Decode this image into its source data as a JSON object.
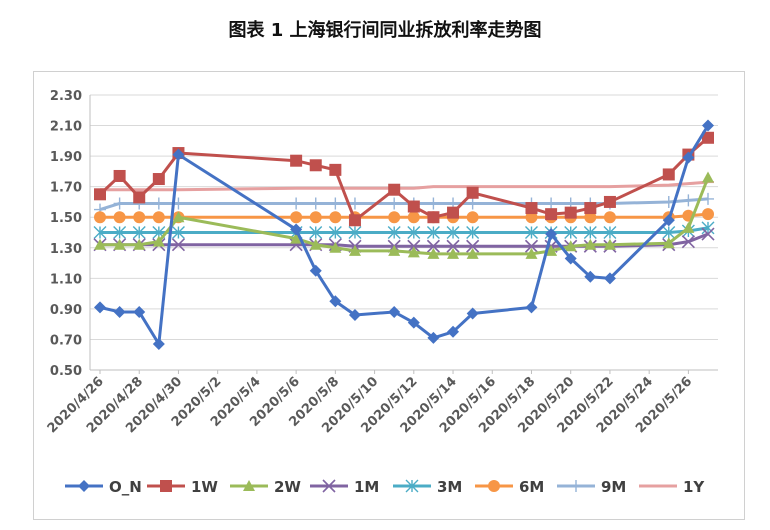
{
  "chart_data": {
    "type": "line",
    "title": "图表 1 上海银行间同业拆放利率走势图",
    "ylim": [
      0.5,
      2.3
    ],
    "y_ticks": [
      "2.30",
      "2.10",
      "1.90",
      "1.70",
      "1.50",
      "1.30",
      "1.10",
      "0.90",
      "0.70",
      "0.50"
    ],
    "x_tick_labels": [
      "2020/4/26",
      "2020/4/28",
      "2020/4/30",
      "2020/5/2",
      "2020/5/4",
      "2020/5/6",
      "2020/5/8",
      "2020/5/10",
      "2020/5/12",
      "2020/5/14",
      "2020/5/16",
      "2020/5/18",
      "2020/5/20",
      "2020/5/22",
      "2020/5/24",
      "2020/5/26"
    ],
    "x_range": [
      "2020/4/26",
      "2020/5/27"
    ],
    "legend_position": "bottom",
    "grid": true,
    "dates": [
      "2020/4/26",
      "2020/4/27",
      "2020/4/28",
      "2020/4/29",
      "2020/4/30",
      "2020/5/6",
      "2020/5/7",
      "2020/5/8",
      "2020/5/9",
      "2020/5/11",
      "2020/5/12",
      "2020/5/13",
      "2020/5/14",
      "2020/5/15",
      "2020/5/18",
      "2020/5/19",
      "2020/5/20",
      "2020/5/21",
      "2020/5/22",
      "2020/5/25",
      "2020/5/26",
      "2020/5/27"
    ],
    "series": [
      {
        "name": "O_N",
        "color": "#4472C4",
        "marker": "diamond",
        "values": [
          0.91,
          0.88,
          0.88,
          0.67,
          1.91,
          1.42,
          1.15,
          0.95,
          0.86,
          0.88,
          0.81,
          0.71,
          0.75,
          0.87,
          0.91,
          1.39,
          1.23,
          1.11,
          1.1,
          1.48,
          1.89,
          2.1
        ]
      },
      {
        "name": "1W",
        "color": "#C0504D",
        "marker": "square",
        "values": [
          1.65,
          1.77,
          1.63,
          1.75,
          1.92,
          1.87,
          1.84,
          1.81,
          1.48,
          1.68,
          1.57,
          1.5,
          1.53,
          1.66,
          1.56,
          1.52,
          1.53,
          1.56,
          1.6,
          1.78,
          1.91,
          2.02
        ]
      },
      {
        "name": "2W",
        "color": "#9BBB59",
        "marker": "triangle",
        "values": [
          1.32,
          1.32,
          1.32,
          1.34,
          1.5,
          1.36,
          1.32,
          1.3,
          1.28,
          1.28,
          1.27,
          1.26,
          1.26,
          1.26,
          1.26,
          1.28,
          1.31,
          1.32,
          1.32,
          1.33,
          1.43,
          1.76
        ]
      },
      {
        "name": "1M",
        "color": "#8064A2",
        "marker": "x",
        "values": [
          1.32,
          1.32,
          1.32,
          1.32,
          1.32,
          1.32,
          1.32,
          1.32,
          1.31,
          1.31,
          1.31,
          1.31,
          1.31,
          1.31,
          1.31,
          1.31,
          1.31,
          1.31,
          1.31,
          1.32,
          1.34,
          1.39
        ]
      },
      {
        "name": "3M",
        "color": "#4BACC6",
        "marker": "star",
        "values": [
          1.4,
          1.4,
          1.4,
          1.4,
          1.4,
          1.4,
          1.4,
          1.4,
          1.4,
          1.4,
          1.4,
          1.4,
          1.4,
          1.4,
          1.4,
          1.4,
          1.4,
          1.4,
          1.4,
          1.4,
          1.41,
          1.43
        ]
      },
      {
        "name": "6M",
        "color": "#F79646",
        "marker": "circle",
        "values": [
          1.5,
          1.5,
          1.5,
          1.5,
          1.5,
          1.5,
          1.5,
          1.5,
          1.5,
          1.5,
          1.5,
          1.5,
          1.5,
          1.5,
          1.5,
          1.5,
          1.5,
          1.5,
          1.5,
          1.5,
          1.51,
          1.52
        ]
      },
      {
        "name": "9M",
        "color": "#95B3D7",
        "marker": "plus",
        "values": [
          1.55,
          1.59,
          1.59,
          1.59,
          1.59,
          1.59,
          1.59,
          1.59,
          1.59,
          1.59,
          1.59,
          1.59,
          1.59,
          1.59,
          1.59,
          1.59,
          1.59,
          1.59,
          1.59,
          1.6,
          1.61,
          1.62
        ]
      },
      {
        "name": "1Y",
        "color": "#E6A0A0",
        "marker": "dash",
        "values": [
          1.68,
          1.68,
          1.68,
          1.68,
          1.68,
          1.69,
          1.69,
          1.69,
          1.69,
          1.69,
          1.69,
          1.7,
          1.7,
          1.7,
          1.7,
          1.7,
          1.7,
          1.7,
          1.7,
          1.71,
          1.72,
          1.73
        ]
      }
    ]
  }
}
